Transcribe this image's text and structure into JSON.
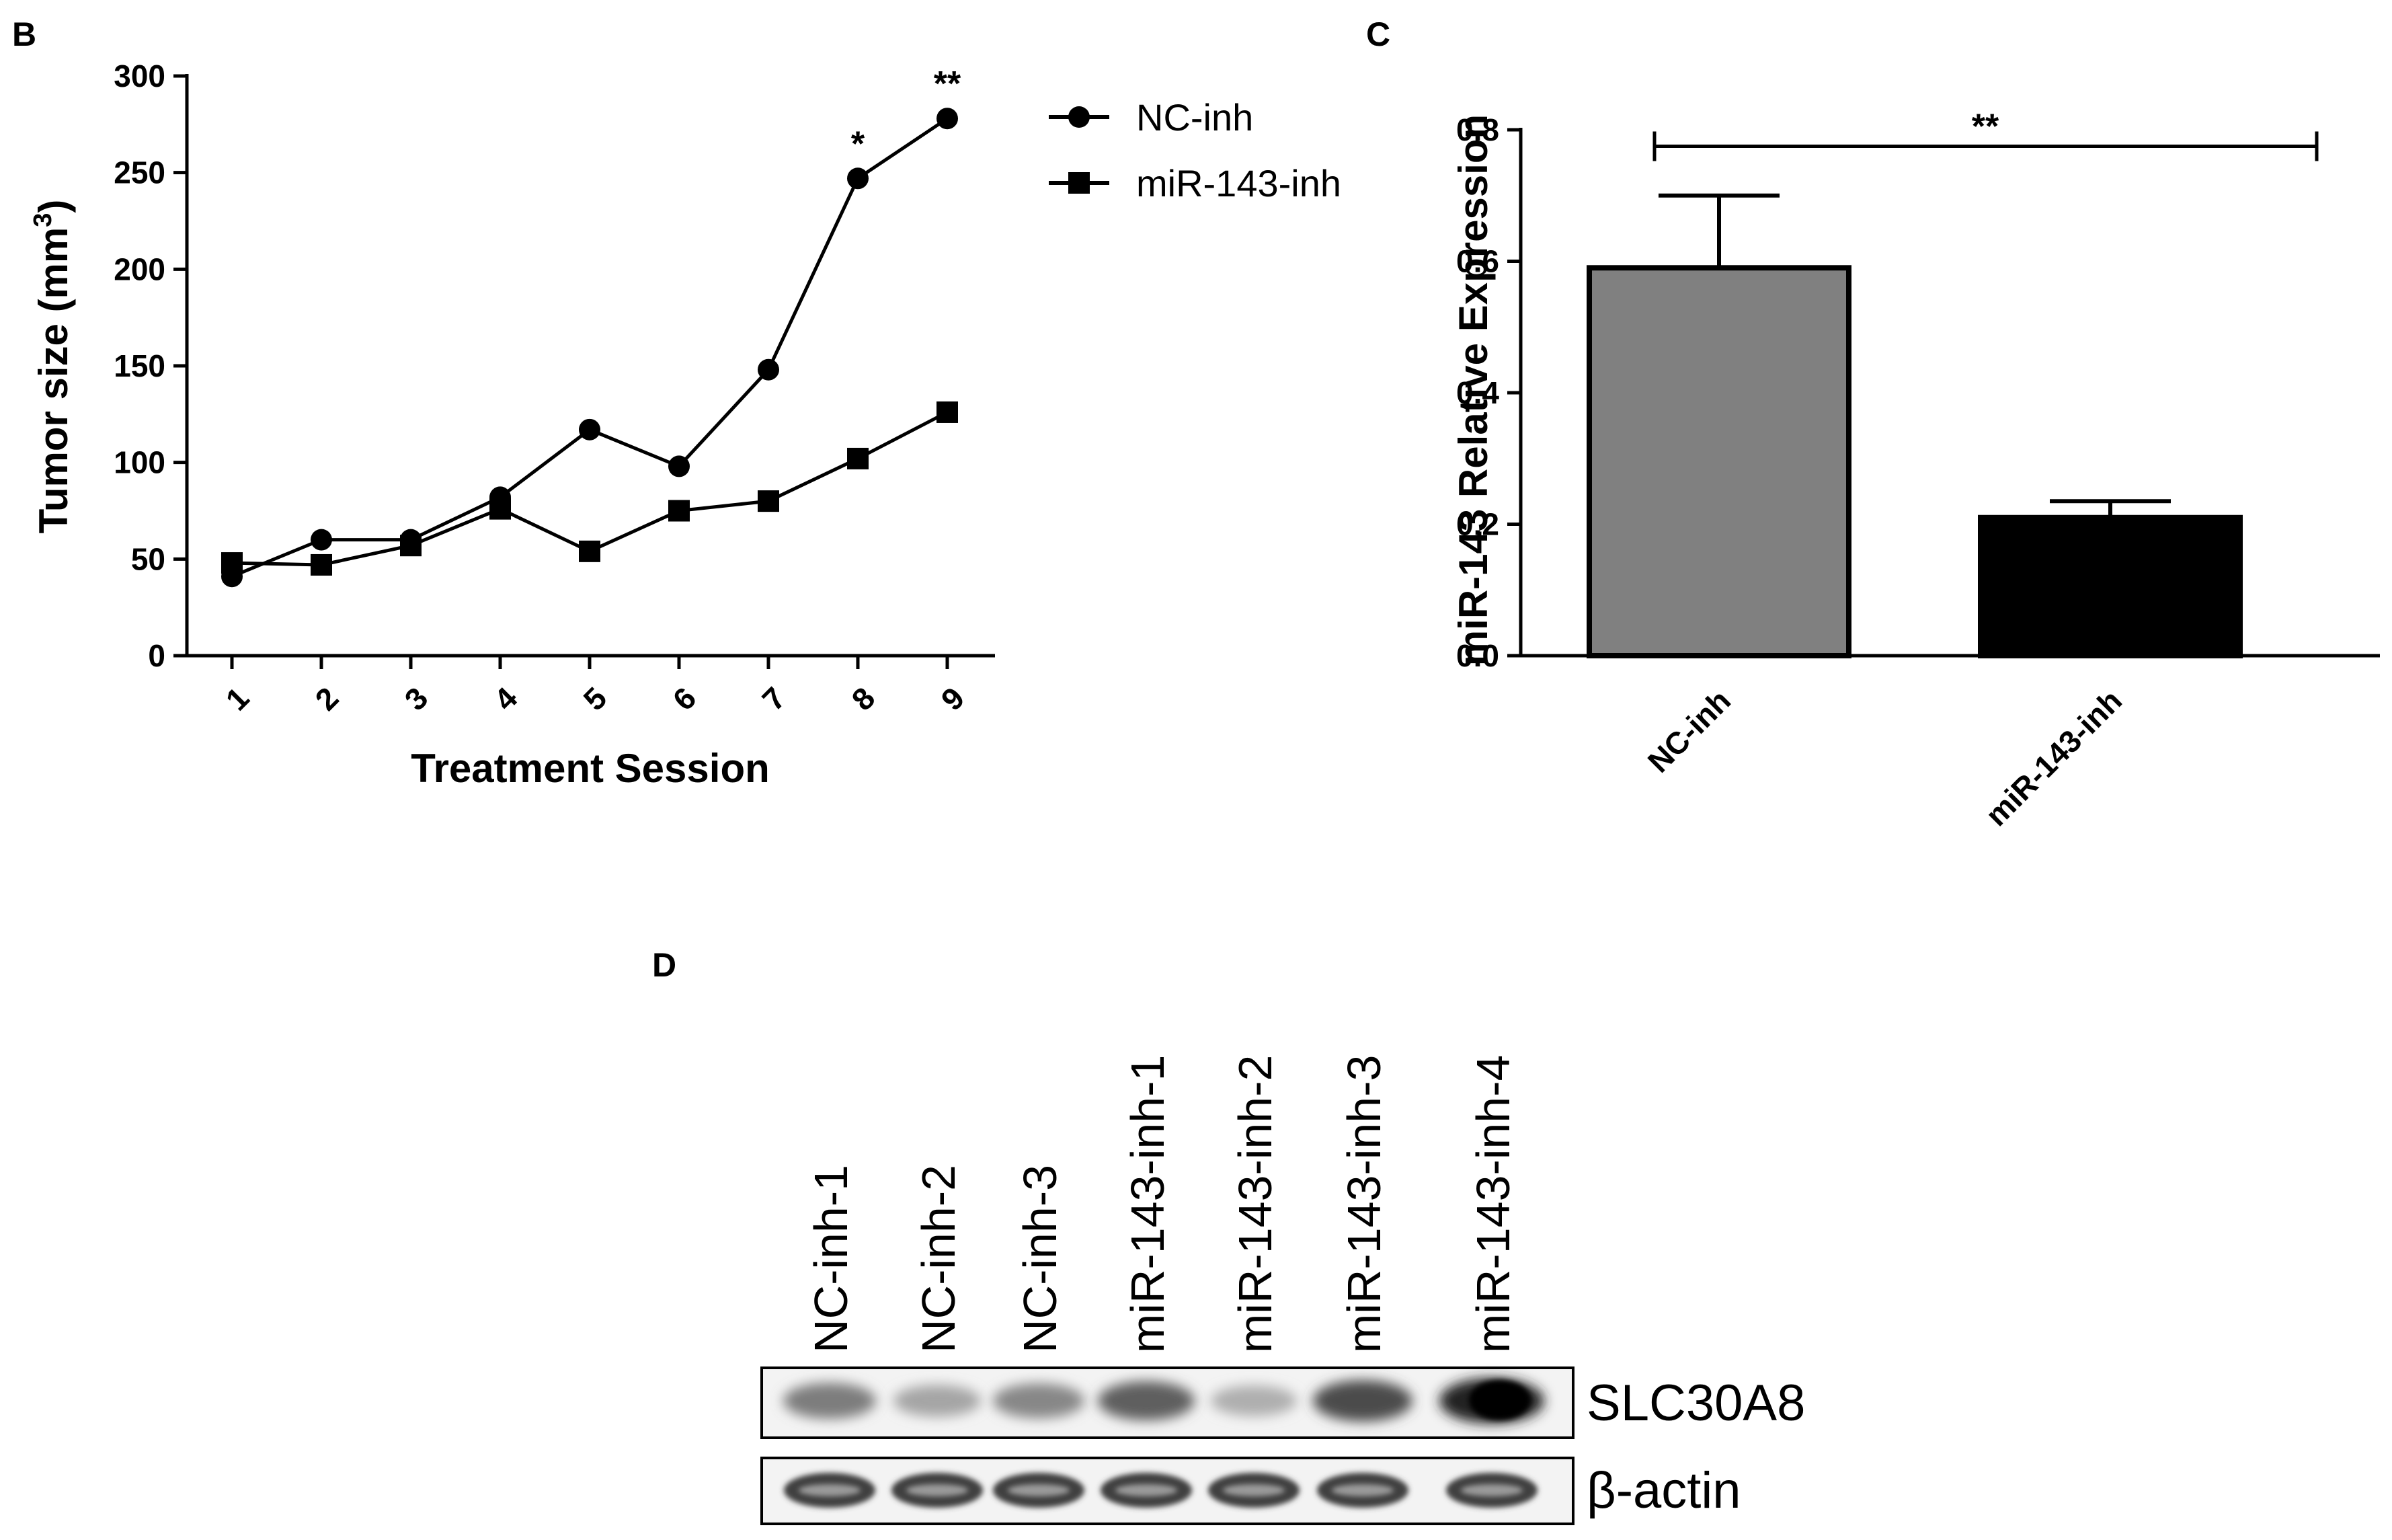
{
  "panels": {
    "B": "B",
    "C": "C",
    "D": "D"
  },
  "chart_data": [
    {
      "panel": "B",
      "type": "line",
      "xlabel": "Treatment Session",
      "ylabel": "Tumor size (mm",
      "ylabel_superscript": "3",
      "ylabel_close": ")",
      "categories": [
        "1",
        "2",
        "3",
        "4",
        "5",
        "6",
        "7",
        "8",
        "9"
      ],
      "ylim": [
        0,
        300
      ],
      "yticks": [
        "0",
        "50",
        "100",
        "150",
        "200",
        "250",
        "300"
      ],
      "series": [
        {
          "name": "NC-inh",
          "marker": "circle",
          "values": [
            41,
            60,
            60,
            82,
            117,
            98,
            148,
            247,
            278
          ]
        },
        {
          "name": "miR-143-inh",
          "marker": "square",
          "values": [
            48,
            47,
            57,
            76,
            54,
            75,
            80,
            102,
            126
          ]
        }
      ],
      "annotations": [
        {
          "x": "8",
          "y": 247,
          "text": "*"
        },
        {
          "x": "9",
          "y": 278,
          "text": "**"
        }
      ],
      "legend": "top-right"
    },
    {
      "panel": "C",
      "type": "bar",
      "ylabel": "miR-143 Relative Expression",
      "categories": [
        "NC-inh",
        "miR-143-inh"
      ],
      "values": [
        0.59,
        0.21
      ],
      "errors": [
        0.11,
        0.025
      ],
      "colors": [
        "#808080",
        "#000000"
      ],
      "ylim": [
        0,
        0.8
      ],
      "yticks": [
        "0.0",
        "0.2",
        "0.4",
        "0.6",
        "0.8"
      ],
      "significance": {
        "text": "**",
        "y": 0.775
      }
    }
  ],
  "blot": {
    "lanes": [
      "NC-inh-1",
      "NC-inh-2",
      "NC-inh-3",
      "miR-143-inh-1",
      "miR-143-inh-2",
      "miR-143-inh-3",
      "miR-143-inh-4"
    ],
    "rows": [
      {
        "label": "SLC30A8",
        "intensity": [
          0.55,
          0.35,
          0.5,
          0.7,
          0.3,
          0.8,
          1.0
        ]
      },
      {
        "label": "β-actin",
        "intensity": [
          0.85,
          0.85,
          0.85,
          0.85,
          0.85,
          0.85,
          0.85
        ]
      }
    ]
  }
}
